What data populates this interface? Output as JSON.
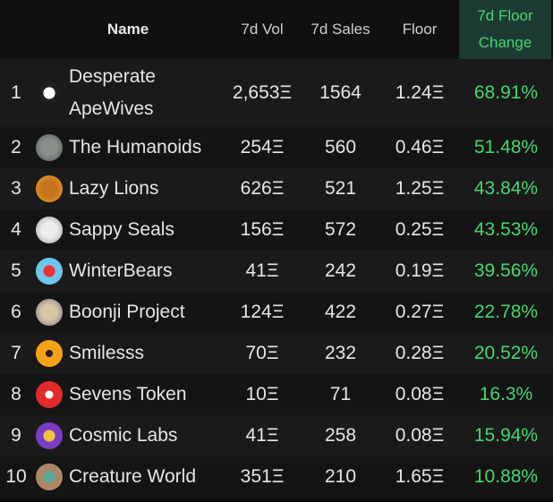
{
  "table": {
    "columns": [
      "Name",
      "7d Vol",
      "7d Sales",
      "Floor",
      "7d Floor Change"
    ],
    "rows": [
      [
        "1",
        "Desperate ApeWives",
        "2,653Ξ",
        "1564",
        "1.24Ξ",
        "68.91%"
      ],
      [
        "2",
        "The Humanoids",
        "254Ξ",
        "560",
        "0.46Ξ",
        "51.48%"
      ],
      [
        "3",
        "Lazy Lions",
        "626Ξ",
        "521",
        "1.25Ξ",
        "43.84%"
      ],
      [
        "4",
        "Sappy Seals",
        "156Ξ",
        "572",
        "0.25Ξ",
        "43.53%"
      ],
      [
        "5",
        "WinterBears",
        "41Ξ",
        "242",
        "0.19Ξ",
        "39.56%"
      ],
      [
        "6",
        "Boonji Project",
        "124Ξ",
        "422",
        "0.27Ξ",
        "22.78%"
      ],
      [
        "7",
        "Smilesss",
        "70Ξ",
        "232",
        "0.28Ξ",
        "20.52%"
      ],
      [
        "8",
        "Sevens Token",
        "10Ξ",
        "71",
        "0.08Ξ",
        "16.3%"
      ],
      [
        "9",
        "Cosmic Labs",
        "41Ξ",
        "258",
        "0.08Ξ",
        "15.94%"
      ],
      [
        "10",
        "Creature World",
        "351Ξ",
        "210",
        "1.65Ξ",
        "10.88%"
      ]
    ]
  }
}
